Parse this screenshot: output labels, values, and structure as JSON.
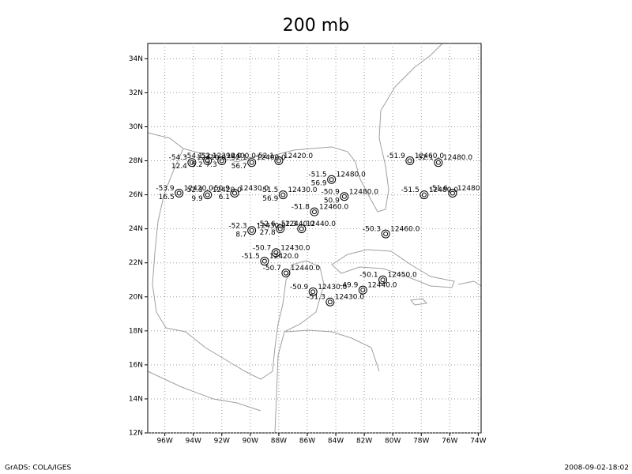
{
  "map": {
    "title": "200 mb",
    "xlim": [
      -97.2,
      -73.8
    ],
    "ylim": [
      12,
      34.9
    ],
    "xticks": [
      {
        "value": -96,
        "label": "96W"
      },
      {
        "value": -94,
        "label": "94W"
      },
      {
        "value": -92,
        "label": "92W"
      },
      {
        "value": -90,
        "label": "90W"
      },
      {
        "value": -88,
        "label": "88W"
      },
      {
        "value": -86,
        "label": "86W"
      },
      {
        "value": -84,
        "label": "84W"
      },
      {
        "value": -82,
        "label": "82W"
      },
      {
        "value": -80,
        "label": "80W"
      },
      {
        "value": -78,
        "label": "78W"
      },
      {
        "value": -76,
        "label": "76W"
      },
      {
        "value": -74,
        "label": "74W"
      }
    ],
    "yticks": [
      {
        "value": 12,
        "label": "12N"
      },
      {
        "value": 14,
        "label": "14N"
      },
      {
        "value": 16,
        "label": "16N"
      },
      {
        "value": 18,
        "label": "18N"
      },
      {
        "value": 20,
        "label": "20N"
      },
      {
        "value": 22,
        "label": "22N"
      },
      {
        "value": 24,
        "label": "24N"
      },
      {
        "value": 26,
        "label": "26N"
      },
      {
        "value": 28,
        "label": "28N"
      },
      {
        "value": 30,
        "label": "30N"
      },
      {
        "value": 32,
        "label": "32N"
      },
      {
        "value": 34,
        "label": "34N"
      }
    ],
    "grid": true,
    "stations": [
      {
        "lon": -94.1,
        "lat": 27.9,
        "temp": "-54.3",
        "height": "12410.0",
        "dewpt": "12.4"
      },
      {
        "lon": -93.0,
        "lat": 28.0,
        "temp": "-54.1",
        "height": "12390.0",
        "dewpt": "5.2"
      },
      {
        "lon": -92.0,
        "lat": 28.0,
        "temp": "-52.1",
        "height": "12400.0",
        "dewpt": "7.3"
      },
      {
        "lon": -89.9,
        "lat": 27.9,
        "temp": "-52.1",
        "height": "12400.0",
        "dewpt": "56.7"
      },
      {
        "lon": -88.0,
        "lat": 28.0,
        "temp": "-52.1",
        "height": "12420.0"
      },
      {
        "lon": -95.0,
        "lat": 26.1,
        "temp": "-53.9",
        "height": "12420.0",
        "dewpt": "16.5"
      },
      {
        "lon": -93.0,
        "lat": 26.0,
        "temp": "-52.3",
        "height": "12420.0",
        "dewpt": "9.9"
      },
      {
        "lon": -91.1,
        "lat": 26.1,
        "temp": "-50.9",
        "height": "12430.0",
        "dewpt": "6.1"
      },
      {
        "lon": -87.7,
        "lat": 26.0,
        "temp": "-51.5",
        "height": "12430.0",
        "dewpt": "56.9"
      },
      {
        "lon": -84.3,
        "lat": 26.9,
        "temp": "-51.5",
        "height": "12480.0",
        "dewpt": "56.9"
      },
      {
        "lon": -83.4,
        "lat": 25.9,
        "temp": "-50.9",
        "height": "12480.0",
        "dewpt": "50.9"
      },
      {
        "lon": -85.5,
        "lat": 25.0,
        "temp": "-51.8",
        "height": "12460.0"
      },
      {
        "lon": -89.9,
        "lat": 23.9,
        "temp": "-52.3",
        "height": "12430.0",
        "dewpt": "8.7"
      },
      {
        "lon": -87.9,
        "lat": 24.0,
        "temp": "-52.6",
        "height": "12440.0",
        "dewpt": "27.8"
      },
      {
        "lon": -86.4,
        "lat": 24.0,
        "temp": "-52.3",
        "height": "12440.0"
      },
      {
        "lon": -88.2,
        "lat": 22.6,
        "temp": "-50.7",
        "height": "12430.0"
      },
      {
        "lon": -89.0,
        "lat": 22.1,
        "temp": "-51.5",
        "height": "12420.0"
      },
      {
        "lon": -87.5,
        "lat": 21.4,
        "temp": "-50.7",
        "height": "12440.0"
      },
      {
        "lon": -85.6,
        "lat": 20.3,
        "temp": "-50.9",
        "height": "12430.0"
      },
      {
        "lon": -84.4,
        "lat": 19.7,
        "temp": "-51.3",
        "height": "12430.0"
      },
      {
        "lon": -82.1,
        "lat": 20.4,
        "temp": "-49.9",
        "height": "12440.0"
      },
      {
        "lon": -80.7,
        "lat": 21.0,
        "temp": "-50.1",
        "height": "12450.0"
      },
      {
        "lon": -80.5,
        "lat": 23.7,
        "temp": "-50.3",
        "height": "12460.0"
      },
      {
        "lon": -78.8,
        "lat": 28.0,
        "temp": "-51.9",
        "height": "12460.0"
      },
      {
        "lon": -76.8,
        "lat": 27.9,
        "temp": "-52.1",
        "height": "12480.0"
      },
      {
        "lon": -77.8,
        "lat": 26.0,
        "temp": "-51.5",
        "height": "12480.0"
      },
      {
        "lon": -75.8,
        "lat": 26.1,
        "temp": "-51.6",
        "height": "12480"
      }
    ],
    "footer_left": "GrADS: COLA/IGES",
    "footer_right": "2008-09-02-18:02"
  }
}
